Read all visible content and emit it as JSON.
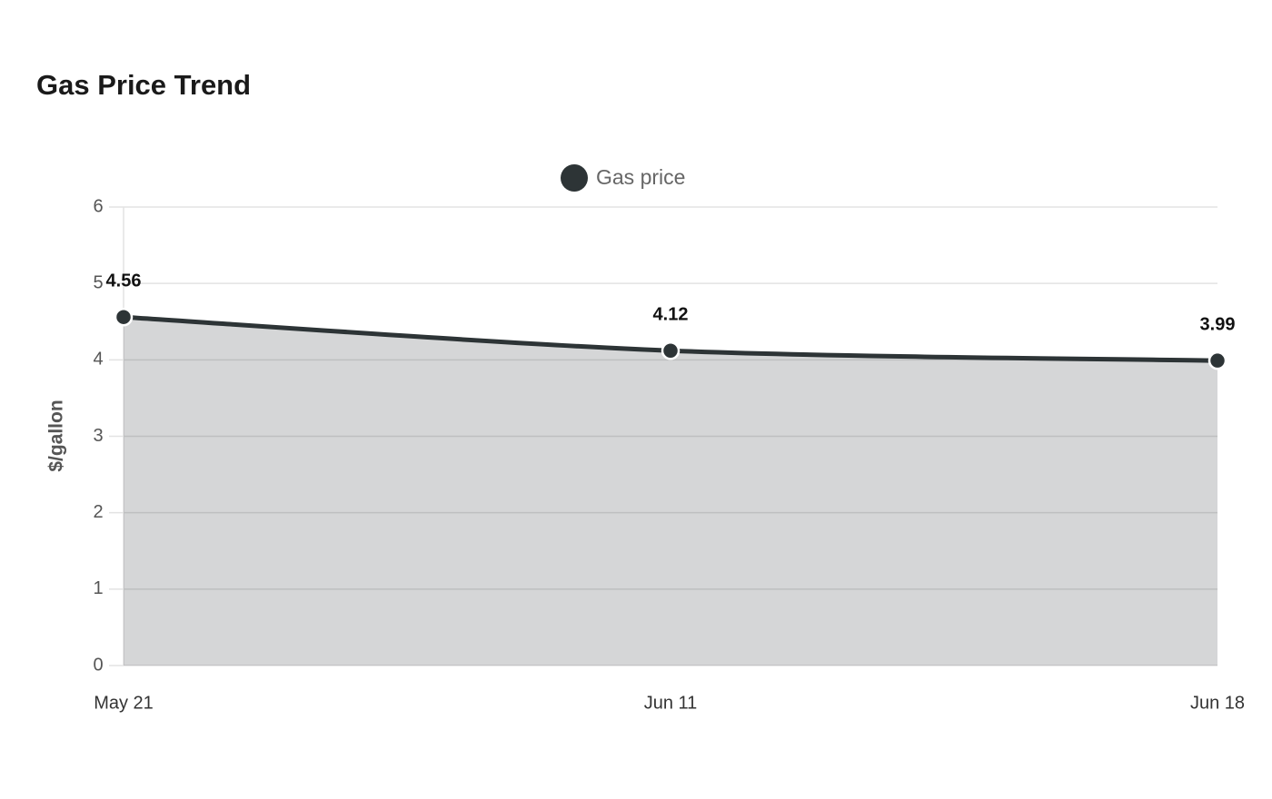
{
  "chart_data": {
    "type": "area",
    "title": "Gas Price Trend",
    "y_label": "$/gallon",
    "categories": [
      "May 21",
      "Jun 11",
      "Jun 18"
    ],
    "series": [
      {
        "name": "Gas price",
        "color": "#2d3436",
        "values": [
          4.56,
          4.12,
          3.99
        ]
      }
    ],
    "ylim": [
      0,
      6
    ],
    "yticks": [
      0,
      1,
      2,
      3,
      4,
      5,
      6
    ],
    "grid": true,
    "data_labels": true,
    "legend": "top"
  }
}
